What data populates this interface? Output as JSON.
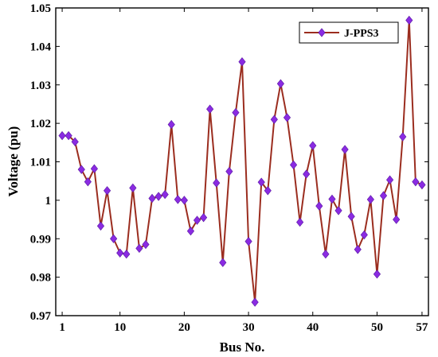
{
  "chart_data": {
    "type": "line",
    "xlabel": "Bus No.",
    "ylabel": "Voltage (pu)",
    "xlim": [
      0,
      58
    ],
    "ylim": [
      0.97,
      1.05
    ],
    "xticks": [
      1,
      10,
      20,
      30,
      40,
      50,
      57
    ],
    "yticks": [
      0.97,
      0.98,
      0.99,
      1.0,
      1.01,
      1.02,
      1.03,
      1.04,
      1.05
    ],
    "ytick_labels": [
      "0.97",
      "0.98",
      "0.99",
      "1",
      "1.01",
      "1.02",
      "1.03",
      "1.04",
      "1.05"
    ],
    "grid": false,
    "legend_position": "top-right",
    "series": [
      {
        "name": "J-PPS3",
        "line_color": "#9b2d1f",
        "marker_color": "#8a2be2",
        "marker": "diamond",
        "x": [
          1,
          2,
          3,
          4,
          5,
          6,
          7,
          8,
          9,
          10,
          11,
          12,
          13,
          14,
          15,
          16,
          17,
          18,
          19,
          20,
          21,
          22,
          23,
          24,
          25,
          26,
          27,
          28,
          29,
          30,
          31,
          32,
          33,
          34,
          35,
          36,
          37,
          38,
          39,
          40,
          41,
          42,
          43,
          44,
          45,
          46,
          47,
          48,
          49,
          50,
          51,
          52,
          53,
          54,
          55,
          56,
          57
        ],
        "values": [
          1.0168,
          1.0168,
          1.0152,
          1.008,
          1.0048,
          1.0082,
          0.9933,
          1.0025,
          0.99,
          0.9863,
          0.986,
          1.0032,
          0.9875,
          0.9885,
          1.0005,
          1.001,
          1.0015,
          1.0197,
          1.0002,
          1.0,
          0.992,
          0.9948,
          0.9955,
          1.0237,
          1.0045,
          0.9838,
          1.0075,
          1.0228,
          1.036,
          0.9893,
          0.9735,
          1.0047,
          1.0025,
          1.021,
          1.0303,
          1.0215,
          1.0092,
          0.9943,
          1.0068,
          1.0142,
          0.9985,
          0.986,
          1.0003,
          0.9973,
          1.0132,
          0.9958,
          0.9872,
          0.991,
          1.0002,
          0.9808,
          1.0012,
          1.0053,
          0.995,
          1.0165,
          1.0468,
          1.0048,
          1.004
        ]
      }
    ]
  }
}
